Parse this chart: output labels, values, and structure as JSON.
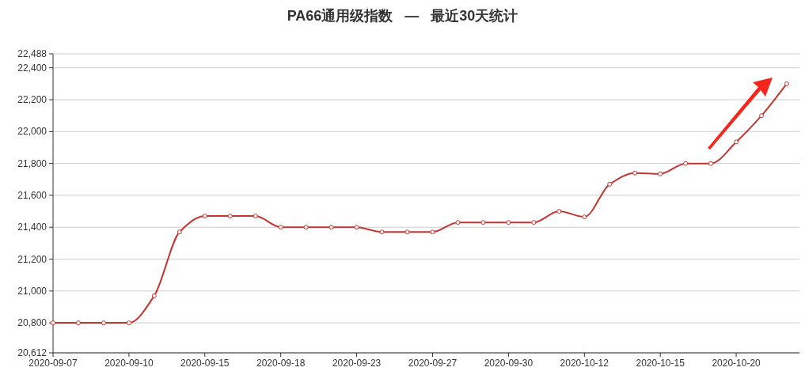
{
  "chart_data": {
    "type": "line",
    "title": "PA66通用级指数   —   最近30天统计",
    "categories": [
      "2020-09-07",
      null,
      null,
      "2020-09-10",
      null,
      null,
      "2020-09-15",
      null,
      null,
      "2020-09-18",
      null,
      null,
      "2020-09-23",
      null,
      null,
      "2020-09-27",
      null,
      null,
      "2020-09-30",
      null,
      null,
      "2020-10-12",
      null,
      null,
      "2020-10-15",
      null,
      null,
      "2020-10-20",
      null,
      null
    ],
    "series": [
      {
        "color": "#c23531",
        "values": [
          20800,
          20800,
          20800,
          20800,
          20970,
          21370,
          21470,
          21470,
          21470,
          21400,
          21400,
          21400,
          21400,
          21370,
          21370,
          21370,
          21430,
          21430,
          21430,
          21430,
          21500,
          21465,
          21670,
          21740,
          21735,
          21800,
          21800,
          21935,
          22100,
          22300
        ]
      }
    ],
    "ylim": [
      20612,
      22488
    ],
    "yticks": [
      {
        "value": 20612,
        "label": "20,612"
      },
      {
        "value": 20800,
        "label": "20,800"
      },
      {
        "value": 21000,
        "label": "21,000"
      },
      {
        "value": 21200,
        "label": "21,200"
      },
      {
        "value": 21400,
        "label": "21,400"
      },
      {
        "value": 21600,
        "label": "21,600"
      },
      {
        "value": 21800,
        "label": "21,800"
      },
      {
        "value": 22000,
        "label": "22,000"
      },
      {
        "value": 22200,
        "label": "22,200"
      },
      {
        "value": 22400,
        "label": "22,400"
      },
      {
        "value": 22488,
        "label": "22,488"
      }
    ],
    "grid": "y",
    "marker": "circle",
    "line_style": "solid"
  }
}
